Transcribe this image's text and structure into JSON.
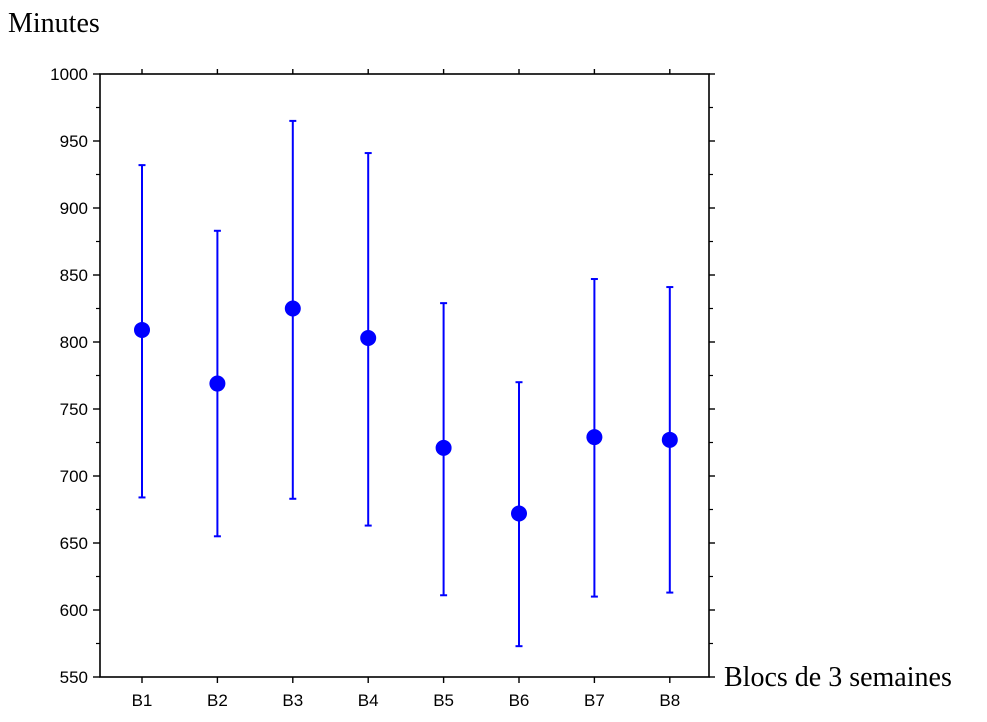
{
  "chart_data": {
    "type": "scatter",
    "subtype": "error-bar",
    "title": "",
    "ylabel": "Minutes",
    "xlabel": "Blocs de 3 semaines",
    "categories": [
      "B1",
      "B2",
      "B3",
      "B4",
      "B5",
      "B6",
      "B7",
      "B8"
    ],
    "series": [
      {
        "values": [
          809,
          769,
          825,
          803,
          721,
          672,
          729,
          727
        ],
        "lower": [
          684,
          655,
          683,
          663,
          611,
          573,
          610,
          613
        ],
        "upper": [
          932,
          883,
          965,
          941,
          829,
          770,
          847,
          841
        ]
      }
    ],
    "ylim": [
      550,
      1000
    ],
    "yticks": [
      550,
      600,
      650,
      700,
      750,
      800,
      850,
      900,
      950,
      1000
    ],
    "grid": false,
    "colors": {
      "series": "#0000ff",
      "axis": "#000000",
      "background": "#ffffff"
    }
  }
}
